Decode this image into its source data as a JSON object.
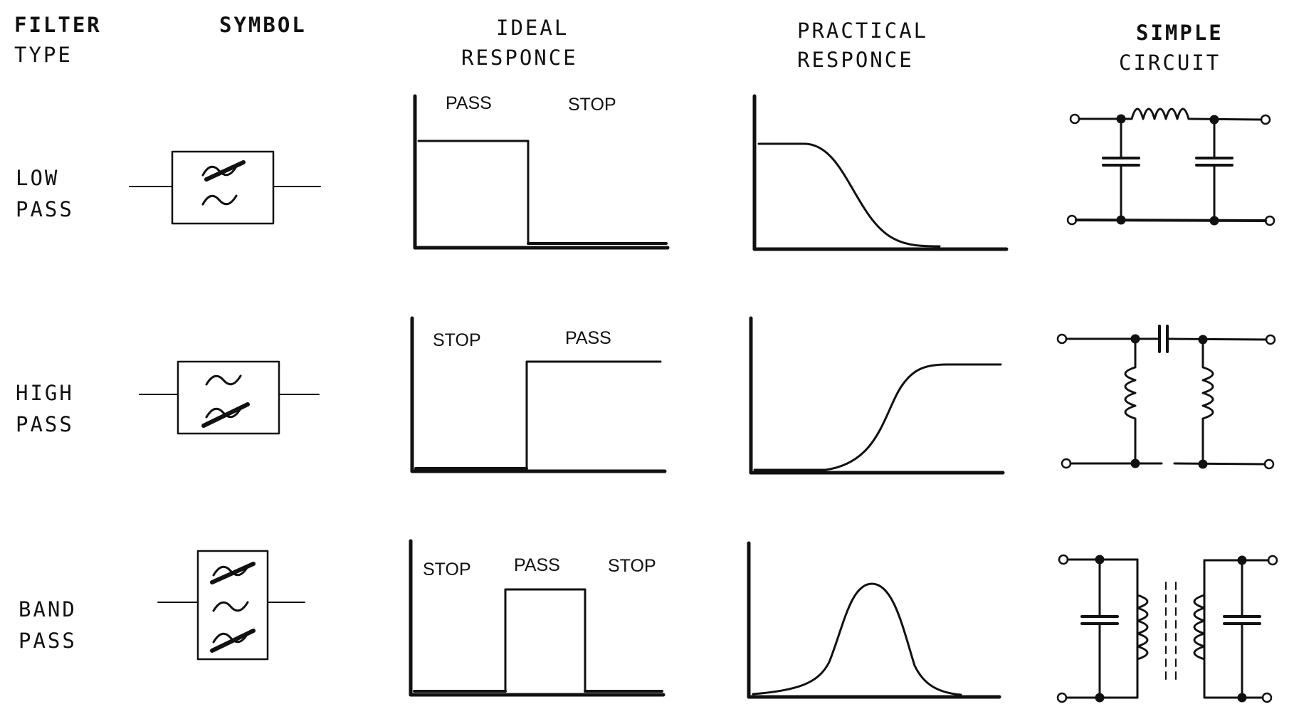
{
  "headers": {
    "type_l1": "FILTER",
    "type_l2": "TYPE",
    "symbol": "SYMBOL",
    "ideal_l1": "IDEAL",
    "ideal_l2": "RESPONCE",
    "practical_l1": "PRACTICAL",
    "practical_l2": "RESPONCE",
    "circuit_l1": "SIMPLE",
    "circuit_l2": "CIRCUIT"
  },
  "rows": [
    {
      "id": "low",
      "l1": "LOW",
      "l2": "PASS",
      "ideal_labels": [
        "PASS",
        "STOP"
      ]
    },
    {
      "id": "high",
      "l1": "HIGH",
      "l2": "PASS",
      "ideal_labels": [
        "STOP",
        "PASS"
      ]
    },
    {
      "id": "band",
      "l1": "BAND",
      "l2": "PASS",
      "ideal_labels": [
        "STOP",
        "PASS",
        "STOP"
      ]
    }
  ],
  "colors": {
    "ink": "#111111",
    "paper": "#ffffff"
  }
}
